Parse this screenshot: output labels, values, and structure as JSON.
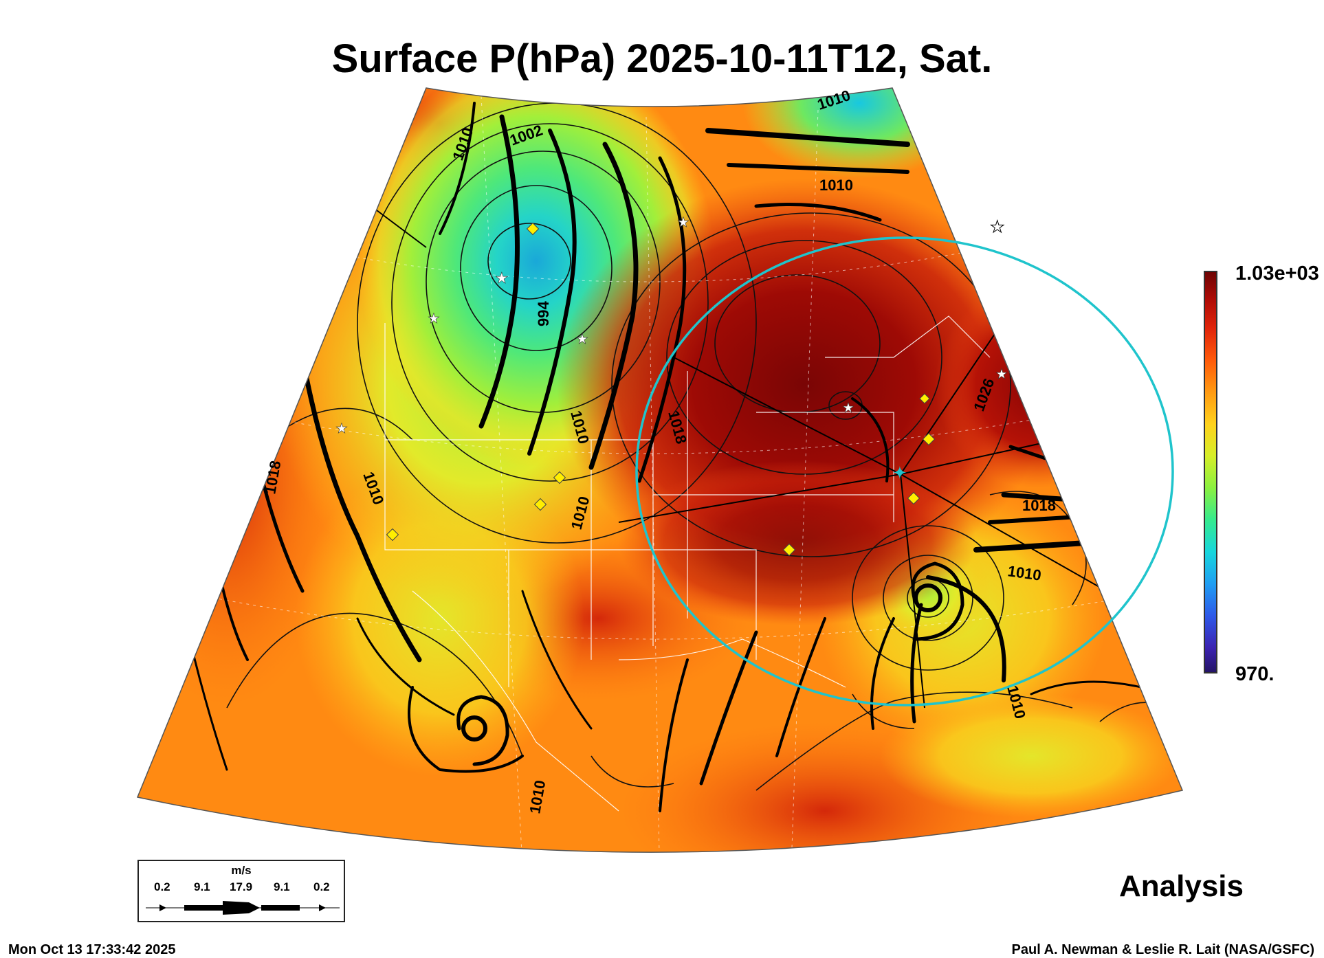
{
  "title": "Surface P(hPa) 2025-10-11T12, Sat.",
  "colorbar": {
    "max_label": "1.03e+03",
    "min_label": "970.",
    "min_value": 970,
    "max_value": 1030
  },
  "contour_labels": [
    "1010",
    "1002",
    "1010",
    "1010",
    "994",
    "1010",
    "1018",
    "1018",
    "1010",
    "1010",
    "1026",
    "1018",
    "1010",
    "1010",
    "1010"
  ],
  "legend": {
    "unit": "m/s",
    "values": [
      "0.2",
      "9.1",
      "17.9",
      "9.1",
      "0.2"
    ]
  },
  "analysis_label": "Analysis",
  "timestamp": "Mon Oct 13 17:33:42 2025",
  "credit": "Paul A. Newman & Leslie R. Lait (NASA/GSFC)",
  "colors": {
    "ring": "#1fc4cc",
    "marker": "#ffee00"
  },
  "markers": [
    "diamond",
    "diamond",
    "diamond",
    "diamond",
    "diamond",
    "diamond",
    "diamond",
    "diamond"
  ]
}
